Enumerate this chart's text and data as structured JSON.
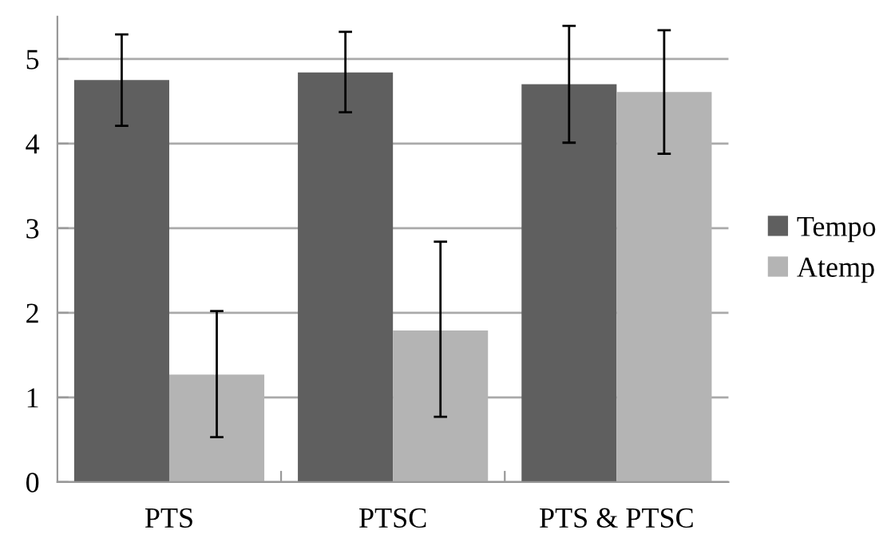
{
  "chart_data": {
    "type": "bar",
    "categories": [
      "PTS",
      "PTSC",
      "PTS & PTSC"
    ],
    "series": [
      {
        "name": "Tempo",
        "color": "#5f5f5f",
        "values": [
          4.75,
          4.84,
          4.7
        ],
        "errors": [
          [
            4.21,
            5.29
          ],
          [
            4.37,
            5.32
          ],
          [
            4.01,
            5.39
          ]
        ]
      },
      {
        "name": "Atemp",
        "color": "#b4b4b4",
        "values": [
          1.27,
          1.79,
          4.61
        ],
        "errors": [
          [
            0.53,
            2.02
          ],
          [
            0.77,
            2.84
          ],
          [
            3.88,
            5.34
          ]
        ]
      }
    ],
    "ylim": [
      0,
      5.5
    ],
    "yticks": [
      0,
      1,
      2,
      3,
      4,
      5
    ],
    "grid": "y",
    "legend": "right"
  }
}
